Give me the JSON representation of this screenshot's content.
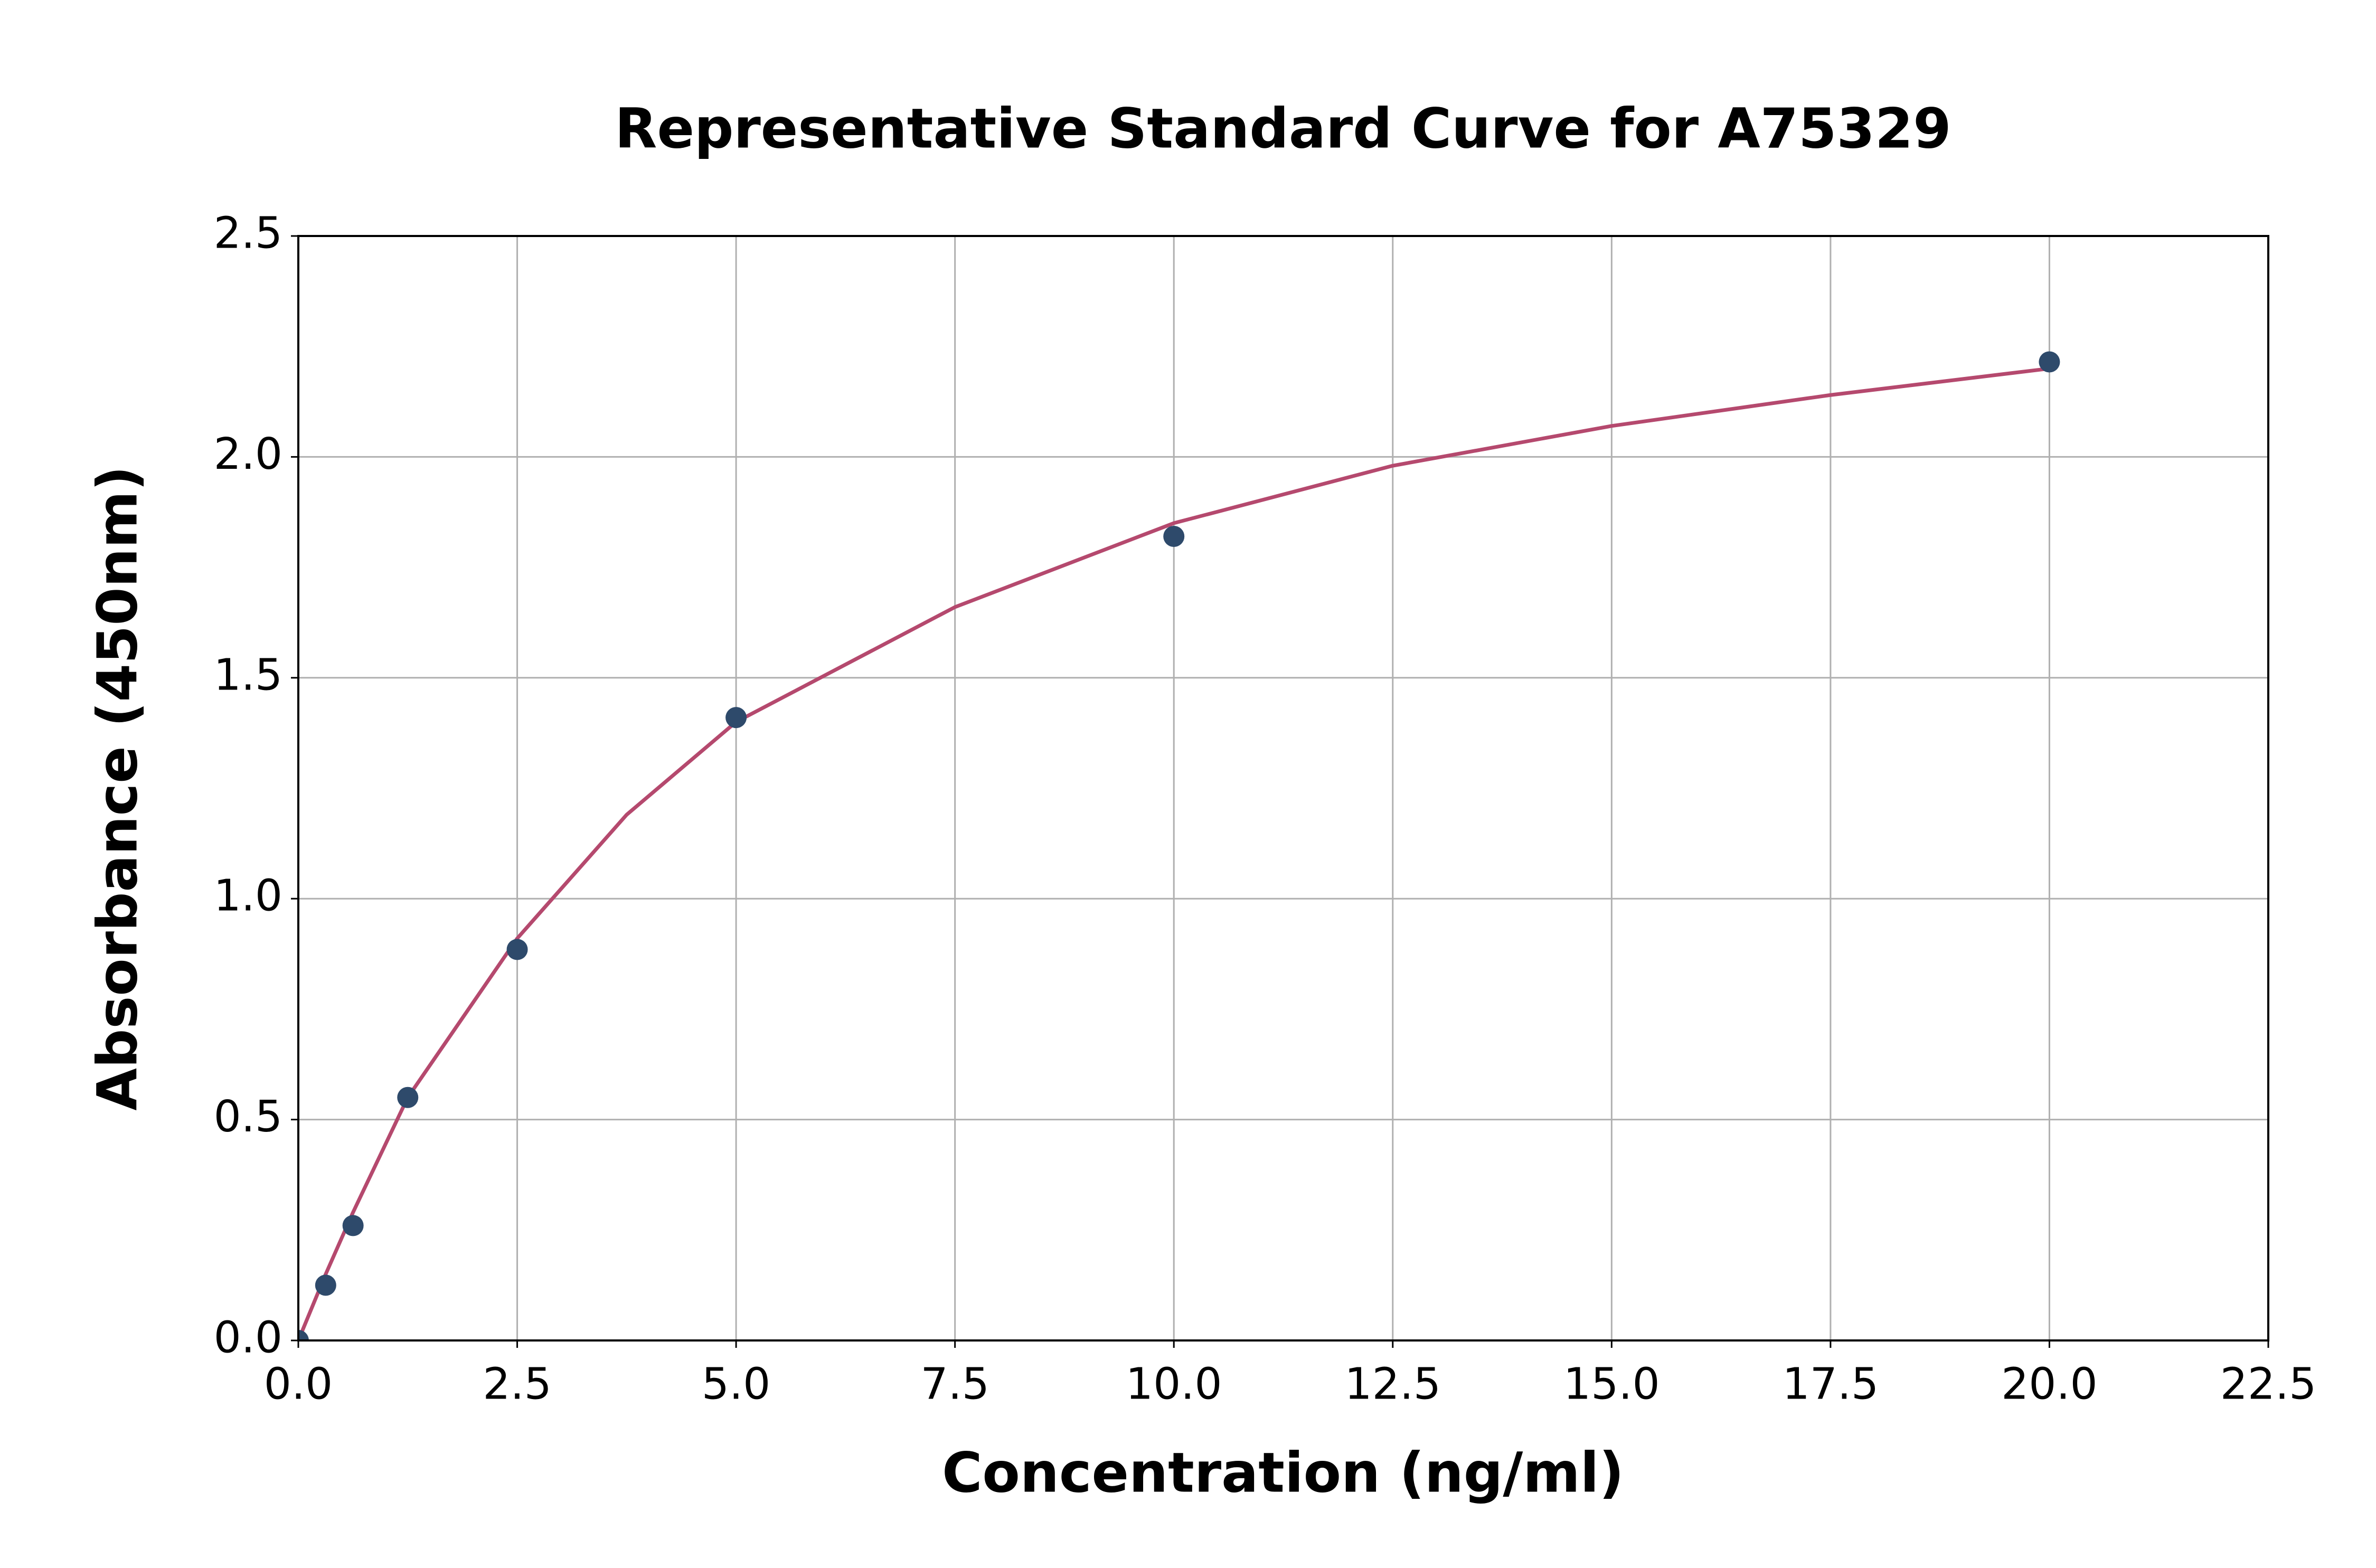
{
  "chart_data": {
    "type": "scatter",
    "title": "Representative Standard Curve for A75329",
    "x_label": "Concentration (ng/ml)",
    "y_label": "Absorbance (450nm)",
    "xlim": [
      0,
      22.5
    ],
    "ylim": [
      0,
      2.5
    ],
    "xticks": [
      {
        "value": 0,
        "label": "0.0"
      },
      2.5,
      {
        "value": 5,
        "label": "5.0"
      },
      7.5,
      {
        "value": 10,
        "label": "10.0"
      },
      12.5,
      {
        "value": 15,
        "label": "15.0"
      },
      17.5,
      {
        "value": 20,
        "label": "20.0"
      },
      22.5
    ],
    "yticks": [
      {
        "value": 0,
        "label": "0.0"
      },
      0.5,
      {
        "value": 1,
        "label": "1.0"
      },
      1.5,
      {
        "value": 2,
        "label": "2.0"
      },
      2.5
    ],
    "grid": true,
    "series": [
      {
        "type": "line",
        "color": "#b5496e",
        "x": [
          0,
          0.3125,
          0.625,
          1.25,
          2.5,
          3.75,
          5,
          7.5,
          10,
          12.5,
          15,
          17.5,
          20
        ],
        "values": [
          0,
          0.15,
          0.29,
          0.55,
          0.91,
          1.19,
          1.4,
          1.66,
          1.85,
          1.98,
          2.07,
          2.14,
          2.2
        ]
      },
      {
        "type": "scatter",
        "color": "#2e4a6b",
        "x": [
          0,
          0.3125,
          0.625,
          1.25,
          2.5,
          5,
          10,
          20
        ],
        "values": [
          0,
          0.125,
          0.26,
          0.55,
          0.885,
          1.41,
          1.82,
          2.215
        ]
      }
    ]
  }
}
